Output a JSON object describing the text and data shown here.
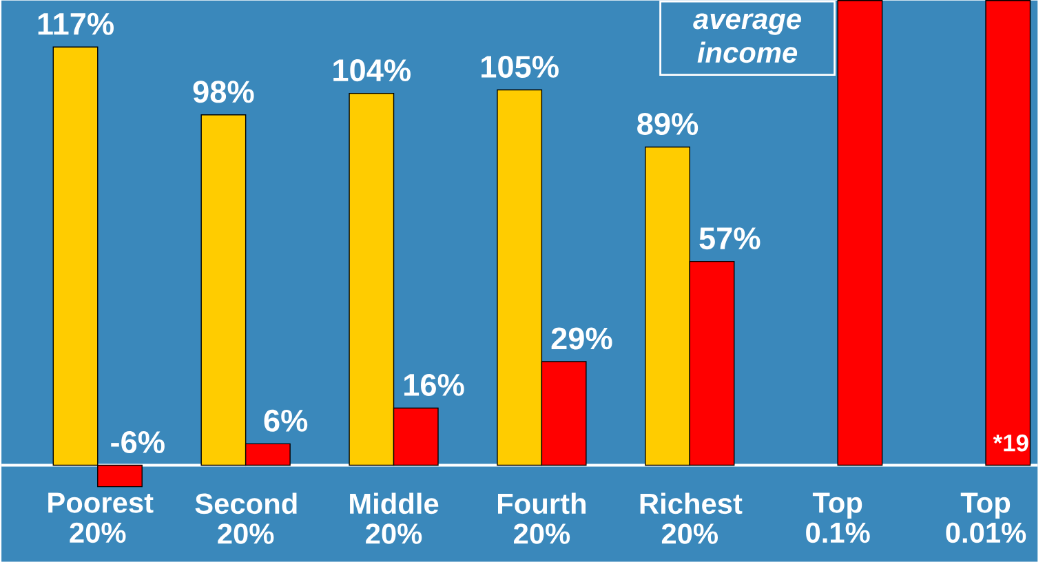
{
  "chart_data": {
    "type": "bar",
    "categories": [
      "Poorest 20%",
      "Second 20%",
      "Middle 20%",
      "Fourth 20%",
      "Richest 20%",
      "Top 0.1%",
      "Top 0.01%"
    ],
    "series": [
      {
        "color": "#ffcc00",
        "values": [
          117,
          98,
          104,
          105,
          89,
          null,
          null
        ],
        "value_labels": [
          "117%",
          "98%",
          "104%",
          "105%",
          "89%",
          null,
          null
        ]
      },
      {
        "color": "#ff0000",
        "values": [
          -6,
          6,
          16,
          29,
          57,
          130,
          130
        ],
        "value_labels": [
          "-6%",
          "6%",
          "16%",
          "29%",
          "57%",
          null,
          null
        ]
      }
    ],
    "annotations": [
      "average income",
      "*19"
    ]
  }
}
